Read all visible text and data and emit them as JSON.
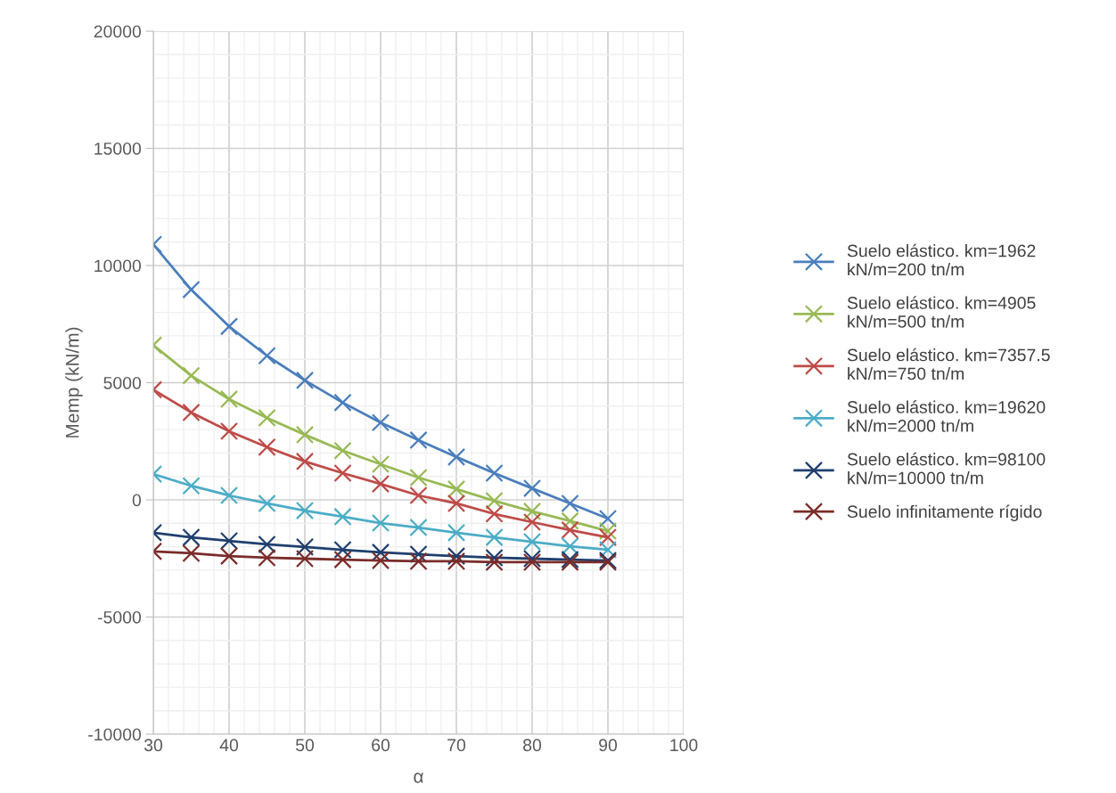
{
  "chart_data": {
    "type": "line",
    "xlabel": "α",
    "ylabel": "Memp (kN/m)",
    "x": [
      30,
      35,
      40,
      45,
      50,
      55,
      60,
      65,
      70,
      75,
      80,
      85,
      90
    ],
    "xlim": [
      30,
      100
    ],
    "xticks": [
      30,
      40,
      50,
      60,
      70,
      80,
      90,
      100
    ],
    "ylim": [
      -10000,
      20000
    ],
    "yticks": [
      -10000,
      -5000,
      0,
      5000,
      10000,
      15000,
      20000
    ],
    "grid": true,
    "legend": "right",
    "marker": "cross",
    "line_style": "solid",
    "series": [
      {
        "name": "Suelo elástico. km=1962 kN/m=200 tn/m",
        "color": "#4a7ebb",
        "values": [
          10900,
          8970,
          7400,
          6150,
          5100,
          4150,
          3300,
          2550,
          1830,
          1140,
          490,
          -150,
          -800
        ]
      },
      {
        "name": "Suelo elástico. km=4905 kN/m=500 tn/m",
        "color": "#98b954",
        "values": [
          6600,
          5300,
          4300,
          3500,
          2780,
          2100,
          1520,
          950,
          460,
          -40,
          -490,
          -900,
          -1330
        ]
      },
      {
        "name": "Suelo elástico. km=7357.5 kN/m=750 tn/m",
        "color": "#be4b48",
        "values": [
          4700,
          3730,
          2930,
          2250,
          1640,
          1140,
          680,
          190,
          -150,
          -600,
          -950,
          -1290,
          -1600
        ]
      },
      {
        "name": "Suelo elástico. km=19620 kN/m=2000 tn/m",
        "color": "#4bacc6",
        "values": [
          1100,
          600,
          190,
          -150,
          -460,
          -720,
          -990,
          -1180,
          -1400,
          -1600,
          -1790,
          -1980,
          -2130
        ]
      },
      {
        "name": "Suelo elástico. km=98100 kN/m=10000 tn/m",
        "color": "#1f3f6e",
        "values": [
          -1400,
          -1600,
          -1750,
          -1900,
          -2010,
          -2130,
          -2240,
          -2320,
          -2400,
          -2470,
          -2510,
          -2550,
          -2590
        ]
      },
      {
        "name": "Suelo infinitamente rígido",
        "color": "#7b2c2a",
        "values": [
          -2200,
          -2280,
          -2400,
          -2470,
          -2510,
          -2550,
          -2590,
          -2620,
          -2620,
          -2660,
          -2660,
          -2660,
          -2660
        ]
      }
    ]
  }
}
